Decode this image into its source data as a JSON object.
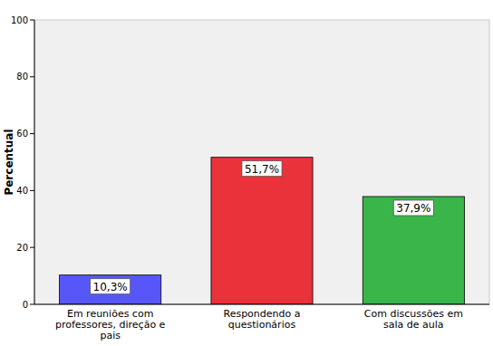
{
  "chart_data": {
    "type": "bar",
    "y_label": "Percentual",
    "categories": [
      "Em reuniões com professores, direção e pais",
      "Respondendo a questionários",
      "Com discussões em sala de aula"
    ],
    "values": [
      10.3,
      51.7,
      37.9
    ],
    "value_labels": [
      "10,3%",
      "51,7%",
      "37,9%"
    ],
    "data_labels": true,
    "colors": [
      "#5757f9",
      "#e9323a",
      "#3ab54a"
    ],
    "ylim": [
      0,
      100
    ],
    "yticks": [
      0,
      20,
      40,
      60,
      80,
      100
    ],
    "grid": false
  }
}
